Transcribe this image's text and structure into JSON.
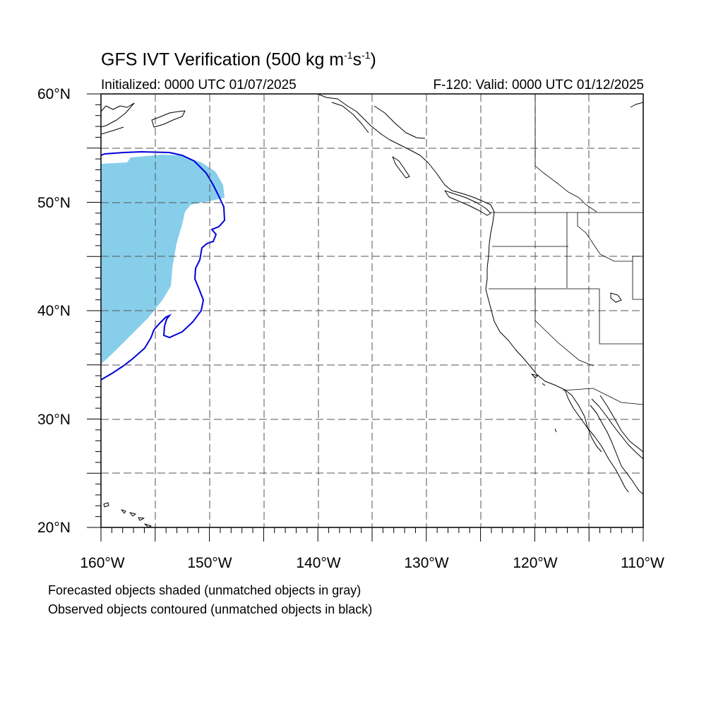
{
  "title": {
    "main": "GFS IVT Verification (500 kg m",
    "sup1": "-1",
    "mid": "s",
    "sup2": "-1",
    "end": ")"
  },
  "subtitle_left": "Initialized: 0000 UTC 01/07/2025",
  "subtitle_right": "F-120: Valid: 0000 UTC 01/12/2025",
  "lat_labels": [
    "60°N",
    "50°N",
    "40°N",
    "30°N",
    "20°N"
  ],
  "lon_labels": [
    "160°W",
    "150°W",
    "140°W",
    "130°W",
    "120°W",
    "110°W"
  ],
  "legend_notes": [
    "Forecasted objects shaded (unmatched objects in gray)",
    "Observed objects contoured (unmatched objects in black)"
  ],
  "map": {
    "extent": {
      "lon_min": -160,
      "lon_max": -110,
      "lat_min": 20,
      "lat_max": 60
    },
    "grid_lons": [
      -155,
      -150,
      -145,
      -140,
      -135,
      -130,
      -125,
      -120,
      -115
    ],
    "grid_lats": [
      25,
      30,
      35,
      40,
      45,
      50,
      55
    ],
    "colors": {
      "forecast_fill": "#87ceeb",
      "observed_contour": "#0000dd",
      "grid": "#555555",
      "coast": "#000000"
    }
  }
}
